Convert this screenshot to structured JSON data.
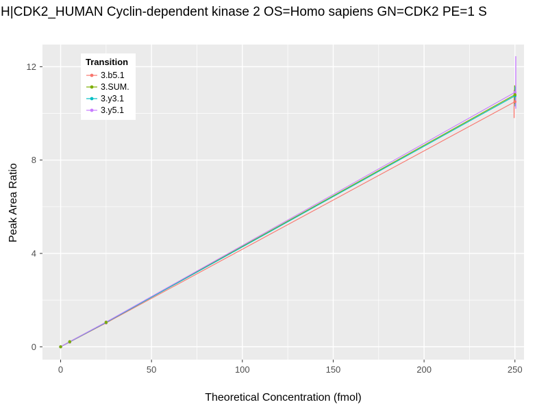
{
  "chart_data": {
    "type": "line",
    "title": "H|CDK2_HUMAN Cyclin-dependent kinase 2 OS=Homo sapiens GN=CDK2 PE=1 S",
    "xlabel": "Theoretical Concentration (fmol)",
    "ylabel": "Peak Area Ratio",
    "legend_title": "Transition",
    "legend_position": "top-left-inside",
    "grid": true,
    "panel_background": "#EBEBEB",
    "grid_color": "#FFFFFF",
    "tick_label_color": "#4D4D4D",
    "xlim": [
      -10,
      255
    ],
    "ylim": [
      -0.55,
      12.95
    ],
    "x_ticks": [
      0,
      50,
      100,
      150,
      200,
      250
    ],
    "x_minor_ticks": [
      25,
      75,
      125,
      175,
      225
    ],
    "y_ticks": [
      0,
      4,
      8,
      12
    ],
    "y_minor_ticks": [
      2,
      6,
      10
    ],
    "x": [
      0,
      5,
      25,
      250
    ],
    "series": [
      {
        "name": "3.b5.1",
        "color": "#F8766D",
        "values": [
          0,
          0.2,
          1.02,
          10.5
        ],
        "error": {
          "x": 250,
          "ymin": 9.8,
          "ymax": 11.0
        }
      },
      {
        "name": "3.SUM.",
        "color": "#7CAE00",
        "values": [
          0,
          0.22,
          1.05,
          10.8
        ],
        "error": {
          "x": 250,
          "ymin": 10.4,
          "ymax": 11.2
        }
      },
      {
        "name": "3.y3.1",
        "color": "#00BFC4",
        "values": [
          0,
          0.21,
          1.04,
          10.75
        ],
        "error": {
          "x": 250,
          "ymin": 10.3,
          "ymax": 11.15
        }
      },
      {
        "name": "3.y5.1",
        "color": "#C77CFF",
        "values": [
          0,
          0.22,
          1.06,
          10.9
        ],
        "error": {
          "x": 250,
          "ymin": 10.2,
          "ymax": 12.45
        }
      }
    ]
  }
}
